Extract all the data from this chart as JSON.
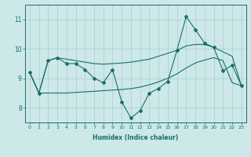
{
  "xlabel": "Humidex (Indice chaleur)",
  "bg_color": "#cce8e8",
  "grid_color": "#aacccc",
  "line_color": "#1a6e6a",
  "x_values": [
    0,
    1,
    2,
    3,
    4,
    5,
    6,
    7,
    8,
    9,
    10,
    11,
    12,
    13,
    14,
    15,
    16,
    17,
    18,
    19,
    20,
    21,
    22,
    23
  ],
  "series1": [
    9.2,
    8.5,
    9.6,
    9.7,
    9.5,
    9.5,
    9.3,
    9.0,
    8.85,
    9.3,
    8.2,
    7.65,
    7.9,
    8.5,
    8.65,
    8.9,
    9.95,
    11.1,
    10.65,
    10.2,
    10.05,
    9.25,
    9.45,
    8.75
  ],
  "series2": [
    9.2,
    8.5,
    9.6,
    9.7,
    9.65,
    9.6,
    9.55,
    9.5,
    9.48,
    9.5,
    9.52,
    9.55,
    9.6,
    9.65,
    9.75,
    9.85,
    9.95,
    10.1,
    10.15,
    10.15,
    10.05,
    9.9,
    9.75,
    8.75
  ],
  "series3": [
    9.2,
    8.5,
    8.5,
    8.5,
    8.5,
    8.52,
    8.54,
    8.56,
    8.58,
    8.6,
    8.62,
    8.65,
    8.7,
    8.78,
    8.88,
    9.0,
    9.15,
    9.35,
    9.52,
    9.62,
    9.7,
    9.6,
    8.85,
    8.75
  ],
  "ylim": [
    7.5,
    11.5
  ],
  "yticks": [
    8,
    9,
    10,
    11
  ],
  "xlim": [
    -0.5,
    23.5
  ],
  "xticks": [
    0,
    1,
    2,
    3,
    4,
    5,
    6,
    7,
    8,
    9,
    10,
    11,
    12,
    13,
    14,
    15,
    16,
    17,
    18,
    19,
    20,
    21,
    22,
    23
  ]
}
